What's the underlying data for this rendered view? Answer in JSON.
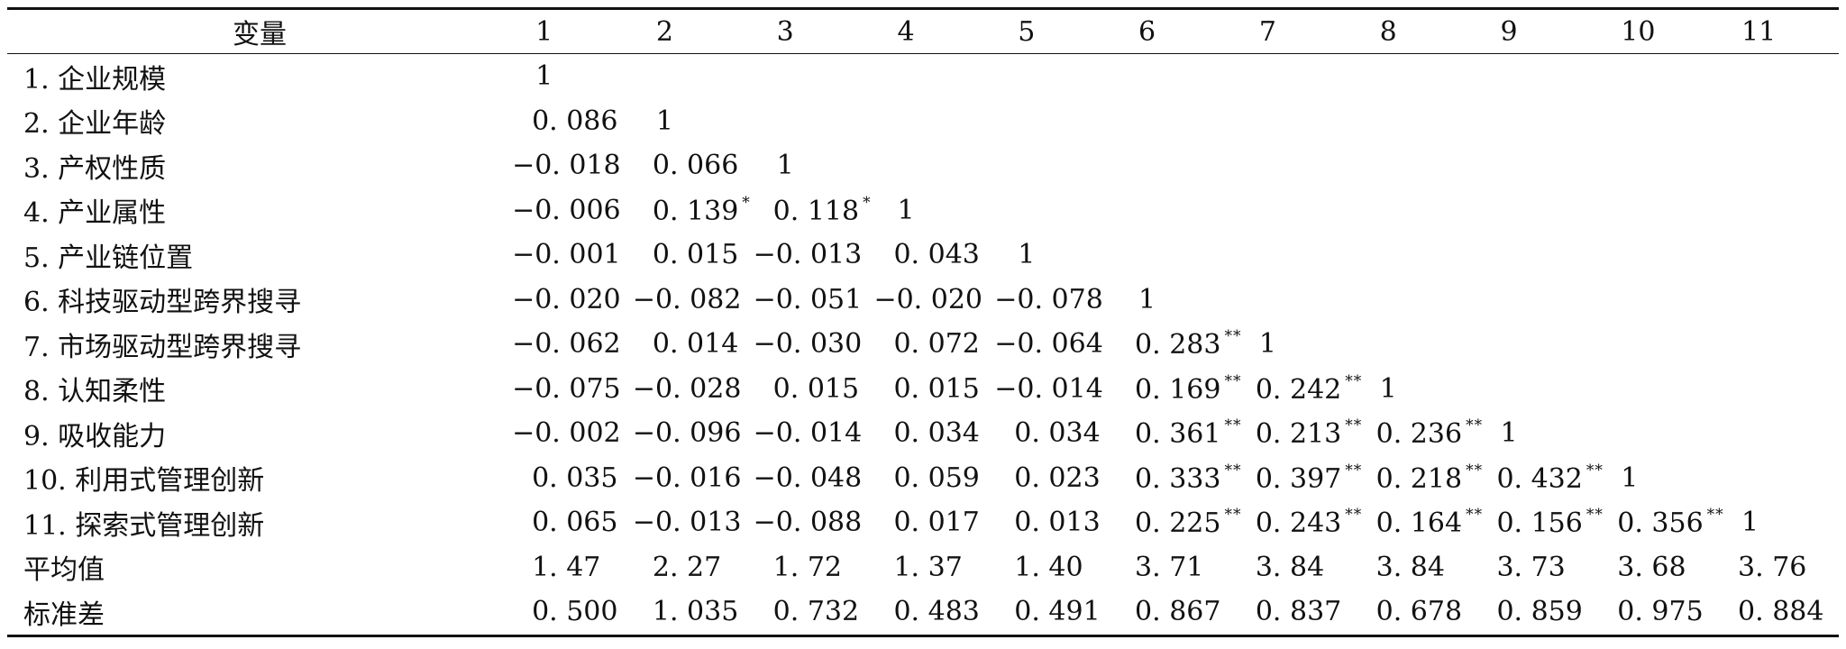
{
  "table": {
    "headers": [
      "变量",
      "1",
      "2",
      "3",
      "4",
      "5",
      "6",
      "7",
      "8",
      "9",
      "10",
      "11"
    ],
    "rows": [
      {
        "label": "1. 企业规模",
        "cells": [
          {
            "v": "1",
            "s": ""
          }
        ]
      },
      {
        "label": "2. 企业年龄",
        "cells": [
          {
            "v": "0. 086",
            "s": ""
          },
          {
            "v": "1",
            "s": ""
          }
        ]
      },
      {
        "label": "3. 产权性质",
        "cells": [
          {
            "v": "−0. 018",
            "s": ""
          },
          {
            "v": "0. 066",
            "s": ""
          },
          {
            "v": "1",
            "s": ""
          }
        ]
      },
      {
        "label": "4. 产业属性",
        "cells": [
          {
            "v": "−0. 006",
            "s": ""
          },
          {
            "v": "0. 139",
            "s": "*"
          },
          {
            "v": "0. 118",
            "s": "*"
          },
          {
            "v": "1",
            "s": ""
          }
        ]
      },
      {
        "label": "5. 产业链位置",
        "cells": [
          {
            "v": "−0. 001",
            "s": ""
          },
          {
            "v": "0. 015",
            "s": ""
          },
          {
            "v": "−0. 013",
            "s": ""
          },
          {
            "v": "0. 043",
            "s": ""
          },
          {
            "v": "1",
            "s": ""
          }
        ]
      },
      {
        "label": "6. 科技驱动型跨界搜寻",
        "cells": [
          {
            "v": "−0. 020",
            "s": ""
          },
          {
            "v": "−0. 082",
            "s": ""
          },
          {
            "v": "−0. 051",
            "s": ""
          },
          {
            "v": "−0. 020",
            "s": ""
          },
          {
            "v": "−0. 078",
            "s": ""
          },
          {
            "v": "1",
            "s": ""
          }
        ]
      },
      {
        "label": "7. 市场驱动型跨界搜寻",
        "cells": [
          {
            "v": "−0. 062",
            "s": ""
          },
          {
            "v": "0. 014",
            "s": ""
          },
          {
            "v": "−0. 030",
            "s": ""
          },
          {
            "v": "0. 072",
            "s": ""
          },
          {
            "v": "−0. 064",
            "s": ""
          },
          {
            "v": "0. 283",
            "s": "**"
          },
          {
            "v": "1",
            "s": ""
          }
        ]
      },
      {
        "label": "8. 认知柔性",
        "cells": [
          {
            "v": "−0. 075",
            "s": ""
          },
          {
            "v": "−0. 028",
            "s": ""
          },
          {
            "v": "0. 015",
            "s": ""
          },
          {
            "v": "0. 015",
            "s": ""
          },
          {
            "v": "−0. 014",
            "s": ""
          },
          {
            "v": "0. 169",
            "s": "**"
          },
          {
            "v": "0. 242",
            "s": "**"
          },
          {
            "v": "1",
            "s": ""
          }
        ]
      },
      {
        "label": "9. 吸收能力",
        "cells": [
          {
            "v": "−0. 002",
            "s": ""
          },
          {
            "v": "−0. 096",
            "s": ""
          },
          {
            "v": "−0. 014",
            "s": ""
          },
          {
            "v": "0. 034",
            "s": ""
          },
          {
            "v": "0. 034",
            "s": ""
          },
          {
            "v": "0. 361",
            "s": "**"
          },
          {
            "v": "0. 213",
            "s": "**"
          },
          {
            "v": "0. 236",
            "s": "**"
          },
          {
            "v": "1",
            "s": ""
          }
        ]
      },
      {
        "label": "10. 利用式管理创新",
        "cells": [
          {
            "v": "0. 035",
            "s": ""
          },
          {
            "v": "−0. 016",
            "s": ""
          },
          {
            "v": "−0. 048",
            "s": ""
          },
          {
            "v": "0. 059",
            "s": ""
          },
          {
            "v": "0. 023",
            "s": ""
          },
          {
            "v": "0. 333",
            "s": "**"
          },
          {
            "v": "0. 397",
            "s": "**"
          },
          {
            "v": "0. 218",
            "s": "**"
          },
          {
            "v": "0. 432",
            "s": "**"
          },
          {
            "v": "1",
            "s": ""
          }
        ]
      },
      {
        "label": "11. 探索式管理创新",
        "cells": [
          {
            "v": "0. 065",
            "s": ""
          },
          {
            "v": "−0. 013",
            "s": ""
          },
          {
            "v": "−0. 088",
            "s": ""
          },
          {
            "v": "0. 017",
            "s": ""
          },
          {
            "v": "0. 013",
            "s": ""
          },
          {
            "v": "0. 225",
            "s": "**"
          },
          {
            "v": "0. 243",
            "s": "**"
          },
          {
            "v": "0. 164",
            "s": "**"
          },
          {
            "v": "0. 156",
            "s": "**"
          },
          {
            "v": "0. 356",
            "s": "**"
          },
          {
            "v": "1",
            "s": ""
          }
        ]
      },
      {
        "label": "平均值",
        "cells": [
          {
            "v": "1. 47",
            "s": ""
          },
          {
            "v": "2. 27",
            "s": ""
          },
          {
            "v": "1. 72",
            "s": ""
          },
          {
            "v": "1. 37",
            "s": ""
          },
          {
            "v": "1. 40",
            "s": ""
          },
          {
            "v": "3. 71",
            "s": ""
          },
          {
            "v": "3. 84",
            "s": ""
          },
          {
            "v": "3. 84",
            "s": ""
          },
          {
            "v": "3. 73",
            "s": ""
          },
          {
            "v": "3. 68",
            "s": ""
          },
          {
            "v": "3. 76",
            "s": ""
          }
        ]
      },
      {
        "label": "标准差",
        "cells": [
          {
            "v": "0. 500",
            "s": ""
          },
          {
            "v": "1. 035",
            "s": ""
          },
          {
            "v": "0. 732",
            "s": ""
          },
          {
            "v": "0. 483",
            "s": ""
          },
          {
            "v": "0. 491",
            "s": ""
          },
          {
            "v": "0. 867",
            "s": ""
          },
          {
            "v": "0. 837",
            "s": ""
          },
          {
            "v": "0. 678",
            "s": ""
          },
          {
            "v": "0. 859",
            "s": ""
          },
          {
            "v": "0. 975",
            "s": ""
          },
          {
            "v": "0. 884",
            "s": ""
          }
        ]
      }
    ]
  }
}
